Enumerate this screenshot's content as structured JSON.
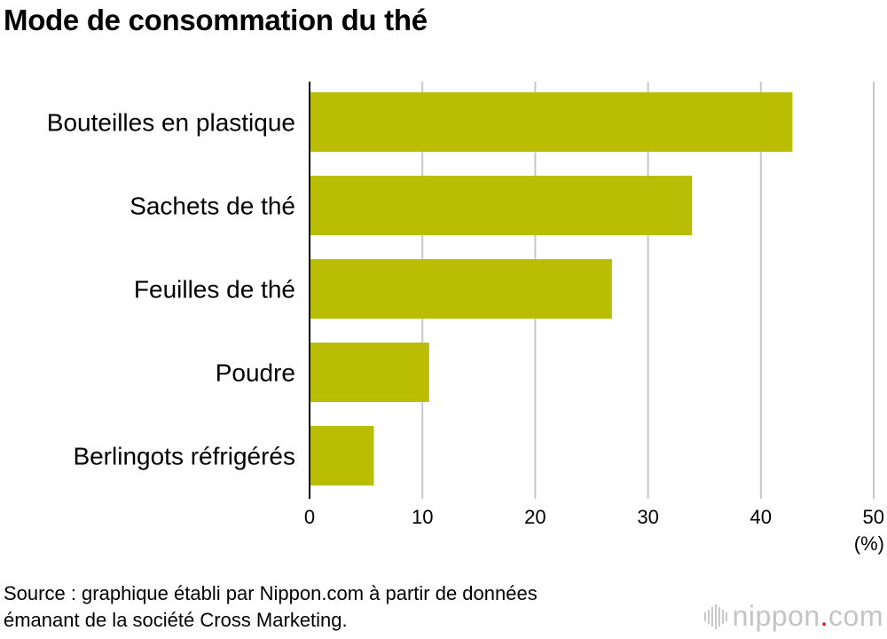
{
  "title": "Mode de consommation du thé",
  "chart_data": {
    "type": "bar",
    "orientation": "horizontal",
    "title": "Mode de consommation du thé",
    "categories": [
      "Bouteilles en plastique",
      "Sachets de thé",
      "Feuilles de thé",
      "Poudre",
      "Berlingots réfrigérés"
    ],
    "values": [
      42.8,
      33.9,
      26.8,
      10.6,
      5.7
    ],
    "xlim": [
      0,
      50
    ],
    "xticks": [
      0,
      10,
      20,
      30,
      40,
      50
    ],
    "xlabel": "(%)",
    "ylabel": "",
    "grid": true,
    "bar_color": "#b9be05"
  },
  "source": {
    "line1": "Source : graphique établi par Nippon.com à partir de données",
    "line2": "émanant de la société Cross Marketing."
  },
  "logo": {
    "main": "nippon",
    "suffix": ".com",
    "accent_color": "#e60012",
    "text_color": "#c4c4c4"
  }
}
